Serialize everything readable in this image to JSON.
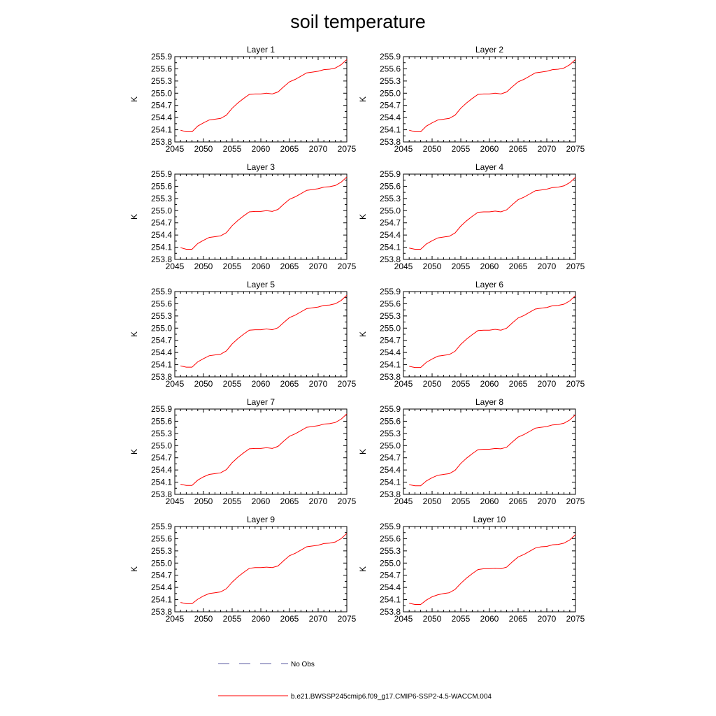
{
  "figure": {
    "title": "soil temperature"
  },
  "chart_data": {
    "type": "line",
    "ylabel": "K",
    "xlim": [
      2045,
      2075
    ],
    "ylim": [
      253.8,
      255.9
    ],
    "x_ticks": [
      2045,
      2050,
      2055,
      2060,
      2065,
      2070,
      2075
    ],
    "x_tick_labels": [
      "2045",
      "2050",
      "2055",
      "2060",
      "2065",
      "2070",
      "2075"
    ],
    "y_ticks": [
      253.8,
      254.1,
      254.4,
      254.7,
      255.0,
      255.3,
      255.6,
      255.9
    ],
    "y_tick_labels": [
      "253.8",
      "254.1",
      "254.4",
      "254.7",
      "255.0",
      "255.3",
      "255.6",
      "255.9"
    ],
    "x": [
      2046,
      2047,
      2048,
      2049,
      2050,
      2051,
      2052,
      2053,
      2054,
      2055,
      2056,
      2057,
      2058,
      2059,
      2060,
      2061,
      2062,
      2063,
      2064,
      2065,
      2066,
      2067,
      2068,
      2069,
      2070,
      2071,
      2072,
      2073,
      2074,
      2075
    ],
    "panels": [
      {
        "title": "Layer 1",
        "series": [
          {
            "name": "b.e21.BWSSP245cmip6.f09_g17.CMIP6-SSP2-4.5-WACCM.004",
            "values": [
              254.09,
              254.05,
              254.05,
              254.19,
              254.27,
              254.34,
              254.36,
              254.38,
              254.46,
              254.63,
              254.76,
              254.87,
              254.97,
              254.98,
              254.98,
              255.0,
              254.98,
              255.03,
              255.16,
              255.28,
              255.34,
              255.42,
              255.5,
              255.52,
              255.54,
              255.58,
              255.59,
              255.62,
              255.7,
              255.83
            ]
          }
        ]
      },
      {
        "title": "Layer 2",
        "series": [
          {
            "name": "b.e21.BWSSP245cmip6.f09_g17.CMIP6-SSP2-4.5-WACCM.004",
            "values": [
              254.09,
              254.05,
              254.05,
              254.19,
              254.27,
              254.34,
              254.36,
              254.38,
              254.46,
              254.63,
              254.76,
              254.87,
              254.97,
              254.98,
              254.98,
              255.0,
              254.98,
              255.03,
              255.16,
              255.28,
              255.34,
              255.42,
              255.5,
              255.52,
              255.54,
              255.58,
              255.59,
              255.62,
              255.7,
              255.83
            ]
          }
        ]
      },
      {
        "title": "Layer 3",
        "series": [
          {
            "name": "b.e21.BWSSP245cmip6.f09_g17.CMIP6-SSP2-4.5-WACCM.004",
            "values": [
              254.09,
              254.05,
              254.05,
              254.19,
              254.27,
              254.34,
              254.36,
              254.38,
              254.46,
              254.63,
              254.76,
              254.87,
              254.97,
              254.98,
              254.98,
              255.0,
              254.98,
              255.03,
              255.16,
              255.28,
              255.34,
              255.42,
              255.5,
              255.52,
              255.54,
              255.58,
              255.59,
              255.62,
              255.7,
              255.83
            ]
          }
        ]
      },
      {
        "title": "Layer 4",
        "series": [
          {
            "name": "b.e21.BWSSP245cmip6.f09_g17.CMIP6-SSP2-4.5-WACCM.004",
            "values": [
              254.08,
              254.05,
              254.05,
              254.18,
              254.26,
              254.33,
              254.35,
              254.37,
              254.45,
              254.62,
              254.75,
              254.86,
              254.96,
              254.97,
              254.97,
              254.99,
              254.97,
              255.02,
              255.15,
              255.27,
              255.33,
              255.41,
              255.49,
              255.51,
              255.53,
              255.57,
              255.58,
              255.61,
              255.69,
              255.82
            ]
          }
        ]
      },
      {
        "title": "Layer 5",
        "series": [
          {
            "name": "b.e21.BWSSP245cmip6.f09_g17.CMIP6-SSP2-4.5-WACCM.004",
            "values": [
              254.07,
              254.04,
              254.04,
              254.17,
              254.25,
              254.32,
              254.34,
              254.36,
              254.44,
              254.61,
              254.74,
              254.85,
              254.95,
              254.96,
              254.96,
              254.98,
              254.96,
              255.01,
              255.14,
              255.26,
              255.32,
              255.4,
              255.48,
              255.5,
              255.52,
              255.56,
              255.57,
              255.6,
              255.68,
              255.81
            ]
          }
        ]
      },
      {
        "title": "Layer 6",
        "series": [
          {
            "name": "b.e21.BWSSP245cmip6.f09_g17.CMIP6-SSP2-4.5-WACCM.004",
            "values": [
              254.06,
              254.03,
              254.03,
              254.16,
              254.24,
              254.31,
              254.33,
              254.35,
              254.43,
              254.6,
              254.73,
              254.84,
              254.94,
              254.95,
              254.95,
              254.97,
              254.95,
              255.0,
              255.13,
              255.25,
              255.31,
              255.39,
              255.47,
              255.49,
              255.51,
              255.55,
              255.56,
              255.59,
              255.67,
              255.8
            ]
          }
        ]
      },
      {
        "title": "Layer 7",
        "series": [
          {
            "name": "b.e21.BWSSP245cmip6.f09_g17.CMIP6-SSP2-4.5-WACCM.004",
            "values": [
              254.05,
              254.02,
              254.02,
              254.15,
              254.23,
              254.29,
              254.31,
              254.33,
              254.41,
              254.58,
              254.71,
              254.82,
              254.92,
              254.93,
              254.93,
              254.95,
              254.93,
              254.98,
              255.11,
              255.23,
              255.29,
              255.37,
              255.45,
              255.47,
              255.49,
              255.53,
              255.54,
              255.57,
              255.65,
              255.78
            ]
          }
        ]
      },
      {
        "title": "Layer 8",
        "series": [
          {
            "name": "b.e21.BWSSP245cmip6.f09_g17.CMIP6-SSP2-4.5-WACCM.004",
            "values": [
              254.04,
              254.01,
              254.01,
              254.13,
              254.21,
              254.27,
              254.29,
              254.31,
              254.39,
              254.56,
              254.69,
              254.8,
              254.9,
              254.91,
              254.91,
              254.93,
              254.92,
              254.96,
              255.09,
              255.21,
              255.27,
              255.35,
              255.43,
              255.45,
              255.47,
              255.51,
              255.52,
              255.55,
              255.63,
              255.76
            ]
          }
        ]
      },
      {
        "title": "Layer 9",
        "series": [
          {
            "name": "b.e21.BWSSP245cmip6.f09_g17.CMIP6-SSP2-4.5-WACCM.004",
            "values": [
              254.03,
              254.0,
              254.0,
              254.11,
              254.19,
              254.25,
              254.27,
              254.29,
              254.37,
              254.53,
              254.66,
              254.77,
              254.87,
              254.89,
              254.89,
              254.9,
              254.89,
              254.93,
              255.06,
              255.18,
              255.24,
              255.32,
              255.4,
              255.42,
              255.44,
              255.48,
              255.49,
              255.52,
              255.6,
              255.73
            ]
          }
        ]
      },
      {
        "title": "Layer 10",
        "series": [
          {
            "name": "b.e21.BWSSP245cmip6.f09_g17.CMIP6-SSP2-4.5-WACCM.004",
            "values": [
              254.01,
              253.98,
              253.98,
              254.09,
              254.17,
              254.22,
              254.25,
              254.27,
              254.35,
              254.5,
              254.63,
              254.74,
              254.84,
              254.86,
              254.86,
              254.87,
              254.86,
              254.9,
              255.03,
              255.15,
              255.21,
              255.29,
              255.37,
              255.4,
              255.41,
              255.45,
              255.46,
              255.49,
              255.57,
              255.7
            ]
          }
        ]
      }
    ],
    "legend": {
      "placement": "bottom",
      "entries": [
        {
          "label": "No Obs",
          "color": "#5a5aa0",
          "style": "dashed"
        },
        {
          "label": "b.e21.BWSSP245cmip6.f09_g17.CMIP6-SSP2-4.5-WACCM.004",
          "color": "#ff0000",
          "style": "solid"
        }
      ]
    },
    "grid": false,
    "series_color": "#ff0000"
  }
}
